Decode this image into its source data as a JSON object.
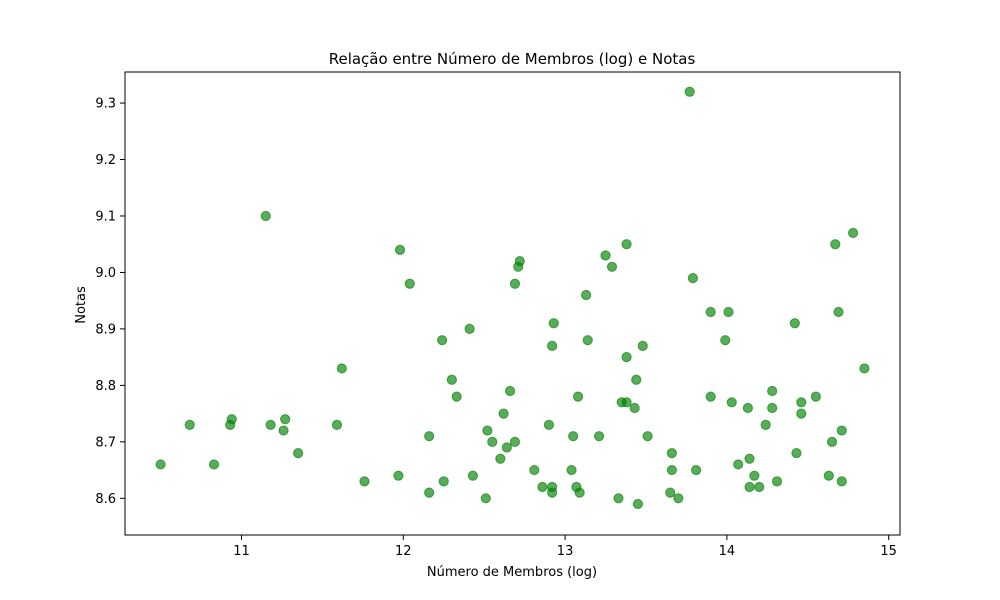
{
  "chart_data": {
    "type": "scatter",
    "title": "Relação entre Número de Membros (log) e Notas",
    "xlabel": "Número de Membros (log)",
    "ylabel": "Notas",
    "xlim": [
      10.28,
      15.07
    ],
    "ylim": [
      8.535,
      9.355
    ],
    "xticks": [
      11,
      12,
      13,
      14,
      15
    ],
    "xtick_labels": [
      "11",
      "12",
      "13",
      "14",
      "15"
    ],
    "yticks": [
      8.6,
      8.7,
      8.8,
      8.9,
      9.0,
      9.1,
      9.2,
      9.3
    ],
    "ytick_labels": [
      "8.6",
      "8.7",
      "8.8",
      "8.9",
      "9.0",
      "9.1",
      "9.2",
      "9.3"
    ],
    "grid": false,
    "marker_color": "#2ca02c",
    "marker_fill": "#008000",
    "marker_opacity": 0.65,
    "points": [
      [
        10.5,
        8.66
      ],
      [
        10.68,
        8.73
      ],
      [
        10.83,
        8.66
      ],
      [
        10.93,
        8.73
      ],
      [
        10.94,
        8.74
      ],
      [
        11.15,
        9.1
      ],
      [
        11.18,
        8.73
      ],
      [
        11.26,
        8.72
      ],
      [
        11.27,
        8.74
      ],
      [
        11.35,
        8.68
      ],
      [
        11.59,
        8.73
      ],
      [
        11.62,
        8.83
      ],
      [
        11.76,
        8.63
      ],
      [
        11.97,
        8.64
      ],
      [
        11.98,
        9.04
      ],
      [
        12.04,
        8.98
      ],
      [
        12.16,
        8.61
      ],
      [
        12.16,
        8.71
      ],
      [
        12.24,
        8.88
      ],
      [
        12.25,
        8.63
      ],
      [
        12.3,
        8.81
      ],
      [
        12.33,
        8.78
      ],
      [
        12.41,
        8.9
      ],
      [
        12.43,
        8.64
      ],
      [
        12.51,
        8.6
      ],
      [
        12.52,
        8.72
      ],
      [
        12.55,
        8.7
      ],
      [
        12.6,
        8.67
      ],
      [
        12.62,
        8.75
      ],
      [
        12.64,
        8.69
      ],
      [
        12.66,
        8.79
      ],
      [
        12.69,
        8.7
      ],
      [
        12.69,
        8.98
      ],
      [
        12.71,
        9.01
      ],
      [
        12.72,
        9.02
      ],
      [
        12.81,
        8.65
      ],
      [
        12.86,
        8.62
      ],
      [
        12.9,
        8.73
      ],
      [
        12.92,
        8.62
      ],
      [
        12.92,
        8.61
      ],
      [
        12.92,
        8.87
      ],
      [
        12.93,
        8.91
      ],
      [
        13.04,
        8.65
      ],
      [
        13.05,
        8.71
      ],
      [
        13.07,
        8.62
      ],
      [
        13.08,
        8.78
      ],
      [
        13.09,
        8.61
      ],
      [
        13.13,
        8.96
      ],
      [
        13.14,
        8.88
      ],
      [
        13.21,
        8.71
      ],
      [
        13.25,
        9.03
      ],
      [
        13.29,
        9.01
      ],
      [
        13.33,
        8.6
      ],
      [
        13.35,
        8.77
      ],
      [
        13.38,
        8.77
      ],
      [
        13.38,
        8.85
      ],
      [
        13.38,
        9.05
      ],
      [
        13.43,
        8.76
      ],
      [
        13.44,
        8.81
      ],
      [
        13.45,
        8.59
      ],
      [
        13.48,
        8.87
      ],
      [
        13.51,
        8.71
      ],
      [
        13.65,
        8.61
      ],
      [
        13.66,
        8.68
      ],
      [
        13.66,
        8.65
      ],
      [
        13.7,
        8.6
      ],
      [
        13.77,
        9.32
      ],
      [
        13.79,
        8.99
      ],
      [
        13.81,
        8.65
      ],
      [
        13.9,
        8.93
      ],
      [
        13.9,
        8.78
      ],
      [
        13.99,
        8.88
      ],
      [
        14.01,
        8.93
      ],
      [
        14.03,
        8.77
      ],
      [
        14.07,
        8.66
      ],
      [
        14.13,
        8.76
      ],
      [
        14.14,
        8.67
      ],
      [
        14.14,
        8.62
      ],
      [
        14.17,
        8.64
      ],
      [
        14.2,
        8.62
      ],
      [
        14.24,
        8.73
      ],
      [
        14.28,
        8.79
      ],
      [
        14.28,
        8.76
      ],
      [
        14.31,
        8.63
      ],
      [
        14.42,
        8.91
      ],
      [
        14.43,
        8.68
      ],
      [
        14.46,
        8.77
      ],
      [
        14.46,
        8.75
      ],
      [
        14.55,
        8.78
      ],
      [
        14.63,
        8.64
      ],
      [
        14.65,
        8.7
      ],
      [
        14.67,
        9.05
      ],
      [
        14.69,
        8.93
      ],
      [
        14.71,
        8.72
      ],
      [
        14.71,
        8.63
      ],
      [
        14.78,
        9.07
      ],
      [
        14.85,
        8.83
      ]
    ]
  }
}
